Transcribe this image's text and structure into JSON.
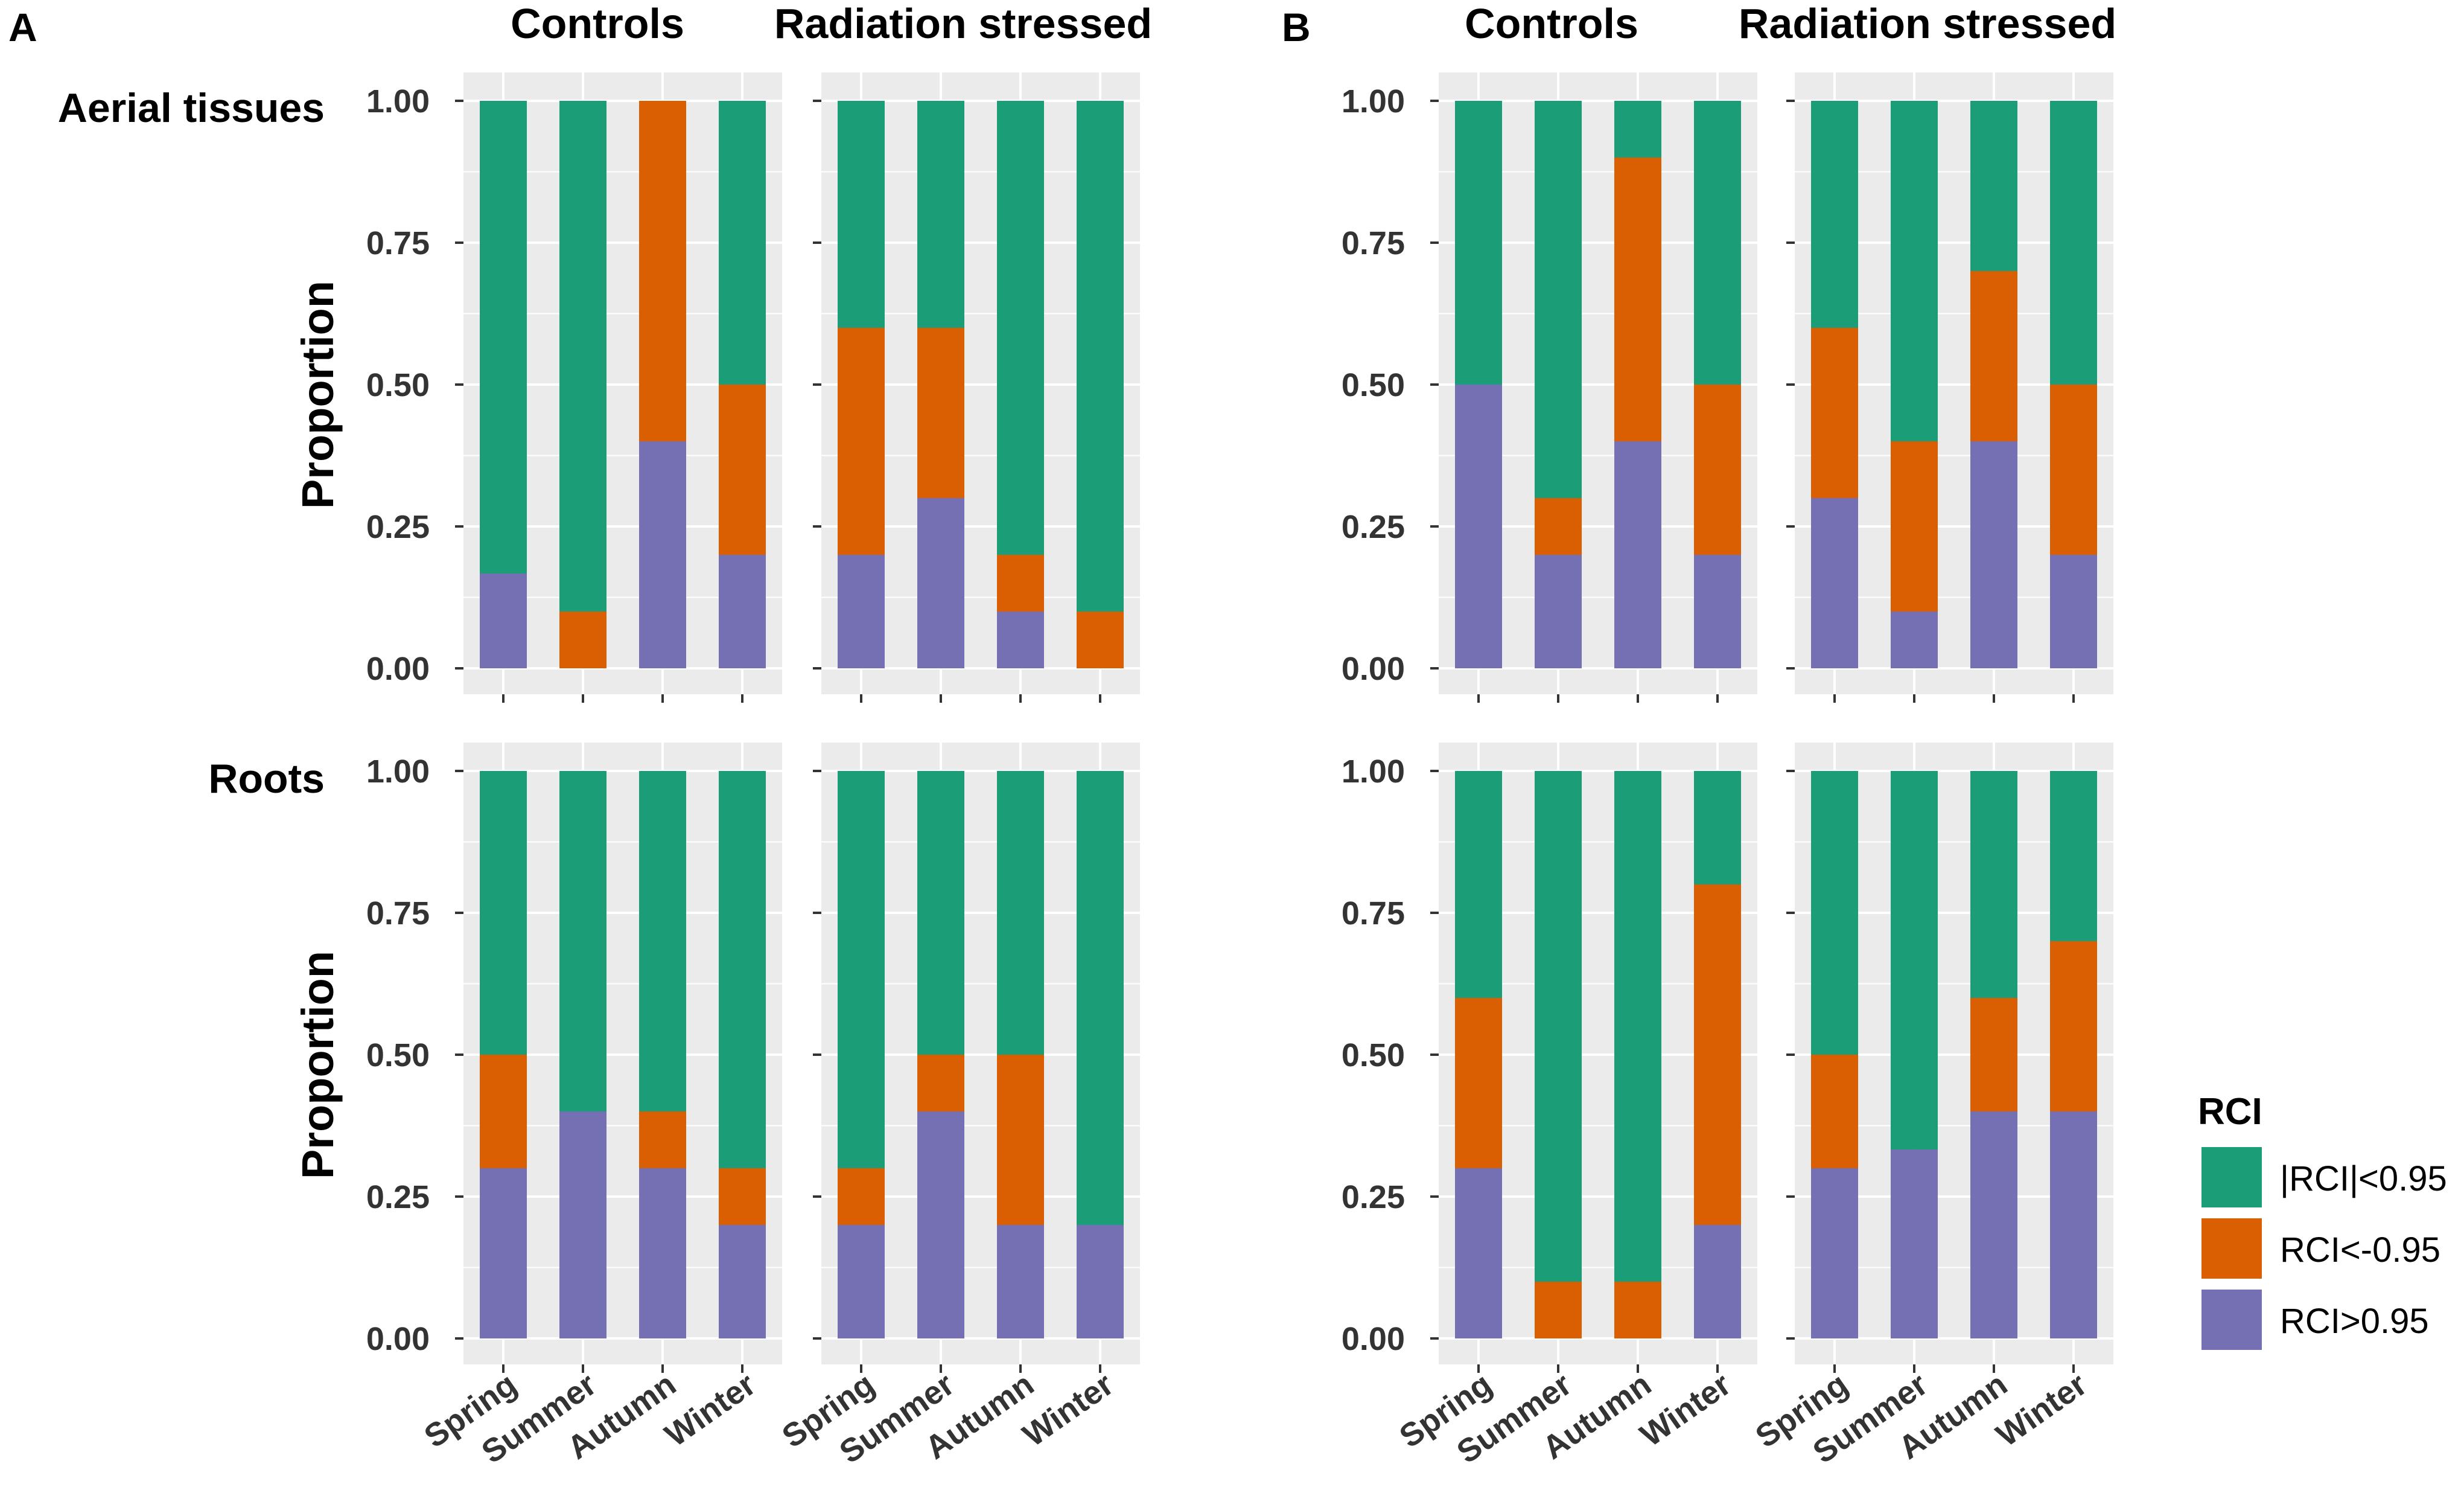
{
  "figure": {
    "panel_labels": [
      "A",
      "B"
    ],
    "column_headers": [
      "Controls",
      "Radiation stressed"
    ],
    "row_labels": [
      "Aerial tissues",
      "Roots"
    ],
    "y_axis_label": "Proportion",
    "y_ticks": [
      "0.00",
      "0.25",
      "0.50",
      "0.75",
      "1.00"
    ]
  },
  "legend": {
    "title": "RCI",
    "entries": [
      {
        "label": "|RCI|<0.95",
        "color": "#1b9e77"
      },
      {
        "label": "RCI<-0.95",
        "color": "#d95f02"
      },
      {
        "label": "RCI>0.95",
        "color": "#7570b3"
      }
    ]
  },
  "chart_data": {
    "type": "bar",
    "stacked": true,
    "categories": [
      "Spring",
      "Summer",
      "Autumn",
      "Winter"
    ],
    "ylim": [
      0,
      1
    ],
    "ylabel": "Proportion",
    "series_order_bottom_to_top": [
      "RCI>0.95",
      "RCI<-0.95",
      "|RCI|<0.95"
    ],
    "panels": [
      {
        "panel": "A",
        "tissue": "Aerial tissues",
        "condition": "Controls",
        "series": [
          {
            "name": "RCI>0.95",
            "values": [
              0.167,
              0.0,
              0.4,
              0.2
            ]
          },
          {
            "name": "RCI<-0.95",
            "values": [
              0.0,
              0.1,
              0.6,
              0.3
            ]
          },
          {
            "name": "|RCI|<0.95",
            "values": [
              0.833,
              0.9,
              0.0,
              0.5
            ]
          }
        ]
      },
      {
        "panel": "A",
        "tissue": "Aerial tissues",
        "condition": "Radiation stressed",
        "series": [
          {
            "name": "RCI>0.95",
            "values": [
              0.2,
              0.3,
              0.1,
              0.0
            ]
          },
          {
            "name": "RCI<-0.95",
            "values": [
              0.4,
              0.3,
              0.1,
              0.1
            ]
          },
          {
            "name": "|RCI|<0.95",
            "values": [
              0.4,
              0.4,
              0.8,
              0.9
            ]
          }
        ]
      },
      {
        "panel": "A",
        "tissue": "Roots",
        "condition": "Controls",
        "series": [
          {
            "name": "RCI>0.95",
            "values": [
              0.3,
              0.4,
              0.3,
              0.2
            ]
          },
          {
            "name": "RCI<-0.95",
            "values": [
              0.2,
              0.0,
              0.1,
              0.1
            ]
          },
          {
            "name": "|RCI|<0.95",
            "values": [
              0.5,
              0.6,
              0.6,
              0.7
            ]
          }
        ]
      },
      {
        "panel": "A",
        "tissue": "Roots",
        "condition": "Radiation stressed",
        "series": [
          {
            "name": "RCI>0.95",
            "values": [
              0.2,
              0.4,
              0.2,
              0.2
            ]
          },
          {
            "name": "RCI<-0.95",
            "values": [
              0.1,
              0.1,
              0.3,
              0.0
            ]
          },
          {
            "name": "|RCI|<0.95",
            "values": [
              0.7,
              0.5,
              0.5,
              0.8
            ]
          }
        ]
      },
      {
        "panel": "B",
        "tissue": "Aerial tissues",
        "condition": "Controls",
        "series": [
          {
            "name": "RCI>0.95",
            "values": [
              0.5,
              0.2,
              0.4,
              0.2
            ]
          },
          {
            "name": "RCI<-0.95",
            "values": [
              0.0,
              0.1,
              0.5,
              0.3
            ]
          },
          {
            "name": "|RCI|<0.95",
            "values": [
              0.5,
              0.7,
              0.1,
              0.5
            ]
          }
        ]
      },
      {
        "panel": "B",
        "tissue": "Aerial tissues",
        "condition": "Radiation stressed",
        "series": [
          {
            "name": "RCI>0.95",
            "values": [
              0.3,
              0.1,
              0.4,
              0.2
            ]
          },
          {
            "name": "RCI<-0.95",
            "values": [
              0.3,
              0.3,
              0.3,
              0.3
            ]
          },
          {
            "name": "|RCI|<0.95",
            "values": [
              0.4,
              0.6,
              0.3,
              0.5
            ]
          }
        ]
      },
      {
        "panel": "B",
        "tissue": "Roots",
        "condition": "Controls",
        "series": [
          {
            "name": "RCI>0.95",
            "values": [
              0.3,
              0.0,
              0.0,
              0.2
            ]
          },
          {
            "name": "RCI<-0.95",
            "values": [
              0.3,
              0.1,
              0.1,
              0.6
            ]
          },
          {
            "name": "|RCI|<0.95",
            "values": [
              0.4,
              0.9,
              0.9,
              0.2
            ]
          }
        ]
      },
      {
        "panel": "B",
        "tissue": "Roots",
        "condition": "Radiation stressed",
        "series": [
          {
            "name": "RCI>0.95",
            "values": [
              0.3,
              0.333,
              0.4,
              0.4
            ]
          },
          {
            "name": "RCI<-0.95",
            "values": [
              0.2,
              0.0,
              0.2,
              0.3
            ]
          },
          {
            "name": "|RCI|<0.95",
            "values": [
              0.5,
              0.667,
              0.4,
              0.3
            ]
          }
        ]
      }
    ]
  }
}
